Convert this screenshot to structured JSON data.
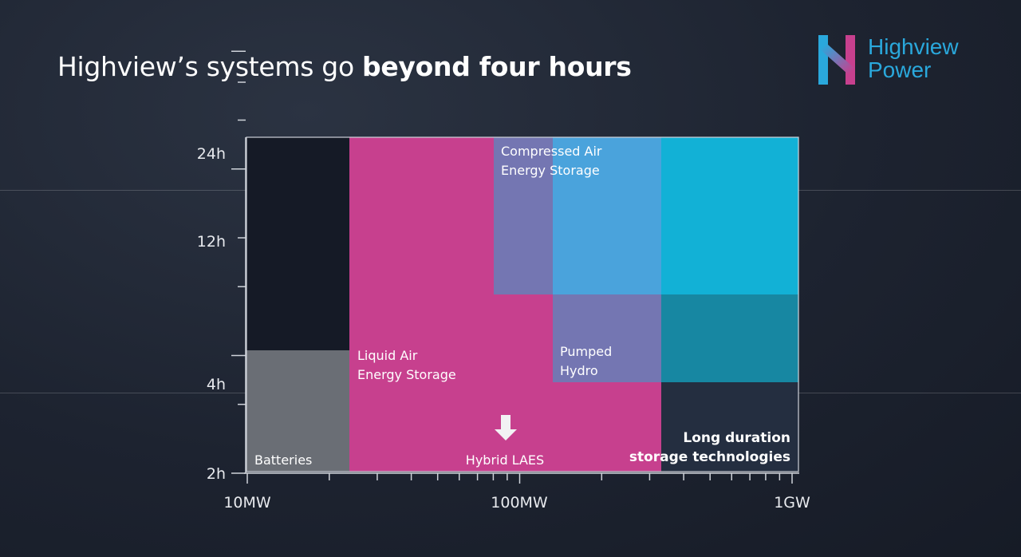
{
  "slide": {
    "title_plain": "Highview’s systems go ",
    "title_bold": "beyond four hours"
  },
  "logo": {
    "line1": "Highview",
    "line2": "Power",
    "brand_color": "#2aa8dc"
  },
  "chart_data": {
    "type": "area",
    "title": "",
    "x_axis": {
      "scale": "log",
      "range": [
        "10MW",
        "1GW"
      ],
      "ticks": [
        "10MW",
        "100MW",
        "1GW"
      ]
    },
    "y_axis": {
      "scale": "log",
      "ticks": [
        "24h",
        "12h",
        "4h",
        "2h"
      ]
    },
    "grid": false,
    "regions": [
      {
        "name": "Batteries",
        "label": "Batteries",
        "color": "#6a6e75"
      },
      {
        "name": "Liquid Air Energy Storage",
        "label_lines": [
          "Liquid Air",
          "Energy Storage"
        ],
        "color": "#c7408e"
      },
      {
        "name": "Compressed Air Energy Storage",
        "label_lines": [
          "Compressed Air",
          "Energy Storage"
        ],
        "color": "#7476b2"
      },
      {
        "name": "Pumped Hydro",
        "label_lines": [
          "Pumped",
          "Hydro"
        ],
        "color": "#7476b2"
      },
      {
        "name": "Long duration storage technologies",
        "label_lines": [
          "Long duration",
          "storage technologies"
        ],
        "color": "#12b1d6"
      }
    ],
    "annotations": [
      {
        "text": "Hybrid LAES",
        "arrow": "down"
      }
    ]
  }
}
